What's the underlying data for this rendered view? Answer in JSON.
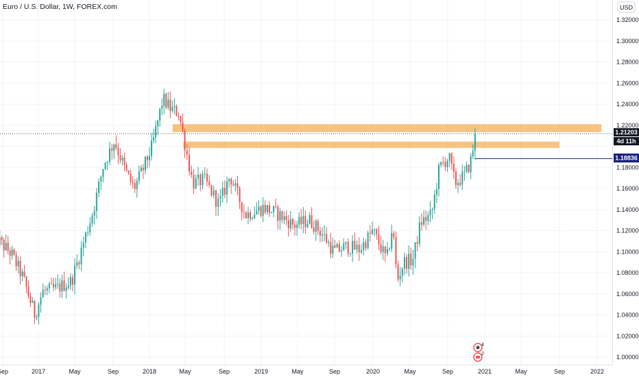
{
  "header": {
    "title": "Euro / U.S. Dollar, 1W, FOREX.com",
    "currency_button": "USD"
  },
  "price_tags": {
    "last_price": "1.21203",
    "countdown": "4d 11h",
    "line_price": "1.18836"
  },
  "events": {
    "badge_1_count": "4",
    "badge_2_count": "2"
  },
  "colors": {
    "up": "#26a69a",
    "down": "#ef5350",
    "zone": "#f6b86a",
    "hline": "#1a237e",
    "last_tag": "#131722"
  },
  "chart_data": {
    "type": "candlestick",
    "y_ticks": [
      "1.32000",
      "1.30000",
      "1.28000",
      "1.26000",
      "1.24000",
      "1.22000",
      "1.20000",
      "1.18000",
      "1.16000",
      "1.14000",
      "1.12000",
      "1.10000",
      "1.08000",
      "1.06000",
      "1.04000",
      "1.02000",
      "1.00000"
    ],
    "y_tick_values": [
      1.32,
      1.3,
      1.28,
      1.26,
      1.24,
      1.22,
      1.2,
      1.18,
      1.16,
      1.14,
      1.12,
      1.1,
      1.08,
      1.06,
      1.04,
      1.02,
      1.0
    ],
    "ylim": [
      0.9975,
      1.333
    ],
    "x_labels": [
      "Sep",
      "2017",
      "May",
      "Sep",
      "2018",
      "May",
      "Sep",
      "2019",
      "May",
      "Sep",
      "2020",
      "May",
      "Sep",
      "2021",
      "May",
      "Sep",
      "2022"
    ],
    "x_label_dates": [
      "2016-09",
      "2017-01",
      "2017-05",
      "2017-09",
      "2018-01",
      "2018-05",
      "2018-09",
      "2019-01",
      "2019-05",
      "2019-09",
      "2020-01",
      "2020-05",
      "2020-09",
      "2021-01",
      "2021-05",
      "2021-09",
      "2022-01"
    ],
    "close_path": [
      [
        "2016-08-01",
        1.115
      ],
      [
        "2016-10-01",
        1.098
      ],
      [
        "2016-11-10",
        1.075
      ],
      [
        "2016-12-20",
        1.04
      ],
      [
        "2017-01-15",
        1.062
      ],
      [
        "2017-03-01",
        1.065
      ],
      [
        "2017-04-20",
        1.072
      ],
      [
        "2017-05-15",
        1.095
      ],
      [
        "2017-06-30",
        1.14
      ],
      [
        "2017-08-01",
        1.182
      ],
      [
        "2017-09-05",
        1.205
      ],
      [
        "2017-10-15",
        1.175
      ],
      [
        "2017-11-10",
        1.16
      ],
      [
        "2017-12-10",
        1.178
      ],
      [
        "2018-01-10",
        1.2
      ],
      [
        "2018-02-15",
        1.245
      ],
      [
        "2018-03-15",
        1.235
      ],
      [
        "2018-04-10",
        1.232
      ],
      [
        "2018-04-25",
        1.21
      ],
      [
        "2018-05-25",
        1.165
      ],
      [
        "2018-07-01",
        1.168
      ],
      [
        "2018-08-15",
        1.145
      ],
      [
        "2018-09-20",
        1.172
      ],
      [
        "2018-11-10",
        1.135
      ],
      [
        "2019-01-10",
        1.142
      ],
      [
        "2019-03-01",
        1.135
      ],
      [
        "2019-04-20",
        1.125
      ],
      [
        "2019-06-10",
        1.13
      ],
      [
        "2019-07-20",
        1.118
      ],
      [
        "2019-08-30",
        1.1
      ],
      [
        "2019-10-10",
        1.105
      ],
      [
        "2019-11-20",
        1.102
      ],
      [
        "2020-01-01",
        1.12
      ],
      [
        "2020-02-15",
        1.092
      ],
      [
        "2020-03-05",
        1.125
      ],
      [
        "2020-03-20",
        1.072
      ],
      [
        "2020-04-10",
        1.09
      ],
      [
        "2020-05-10",
        1.092
      ],
      [
        "2020-06-05",
        1.128
      ],
      [
        "2020-07-10",
        1.135
      ],
      [
        "2020-08-05",
        1.18
      ],
      [
        "2020-09-05",
        1.19
      ],
      [
        "2020-09-25",
        1.165
      ],
      [
        "2020-10-25",
        1.172
      ],
      [
        "2020-11-15",
        1.185
      ],
      [
        "2020-12-02",
        1.212
      ]
    ],
    "last_price": 1.21203,
    "zones": [
      {
        "from_date": "2018-03-20",
        "to_date": "2022-01-15",
        "low": 1.2135,
        "high": 1.221
      },
      {
        "from_date": "2018-04-25",
        "to_date": "2021-09-01",
        "low": 1.1985,
        "high": 1.2045
      }
    ],
    "horizontal_line": {
      "value": 1.18836,
      "from_date": "2020-12-01"
    }
  }
}
